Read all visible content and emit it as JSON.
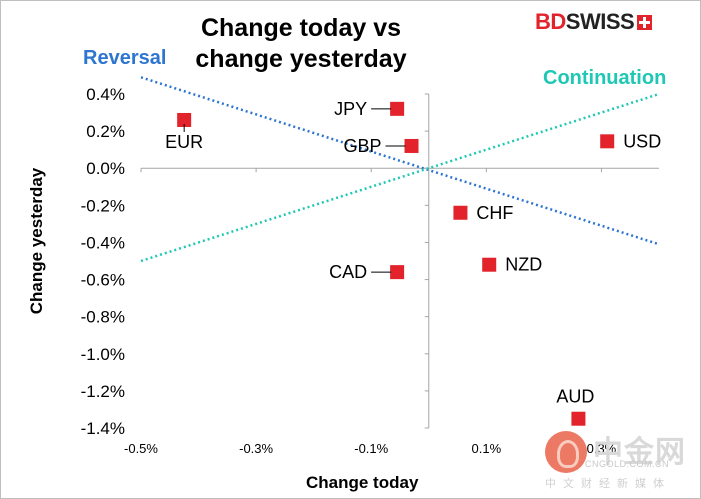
{
  "logo": {
    "prefix": "BD",
    "suffix": "SWISS"
  },
  "watermark": {
    "cn": "中金网",
    "url": "CNGOLD.COM.CN",
    "sub": "中文财经新媒体"
  },
  "chart_data": {
    "type": "scatter",
    "title": "Change today vs change yesterday",
    "title_line1": "Change today vs",
    "title_line2": "change yesterday",
    "xlabel": "Change today",
    "ylabel": "Change yesterday",
    "xlim": [
      -0.5,
      0.4
    ],
    "ylim": [
      -1.4,
      0.4
    ],
    "x_ticks": [
      -0.5,
      -0.3,
      -0.1,
      0.1,
      0.3
    ],
    "x_tick_labels": [
      "-0.5%",
      "-0.3%",
      "-0.1%",
      "0.1%",
      "0.3%"
    ],
    "y_ticks": [
      0.4,
      0.2,
      0.0,
      -0.2,
      -0.4,
      -0.6,
      -0.8,
      -1.0,
      -1.2,
      -1.4
    ],
    "y_tick_labels": [
      "0.4%",
      "0.2%",
      "0.0%",
      "-0.2%",
      "-0.4%",
      "-0.6%",
      "-0.8%",
      "-1.0%",
      "-1.2%",
      "-1.4%"
    ],
    "points": [
      {
        "label": "EUR",
        "x": -0.425,
        "y": 0.26,
        "color": "#e3232b",
        "label_pos": "below"
      },
      {
        "label": "JPY",
        "x": -0.055,
        "y": 0.32,
        "color": "#e3232b",
        "label_pos": "left"
      },
      {
        "label": "GBP",
        "x": -0.03,
        "y": 0.12,
        "color": "#e3232b",
        "label_pos": "left"
      },
      {
        "label": "USD",
        "x": 0.31,
        "y": 0.145,
        "color": "#e3232b",
        "label_pos": "right"
      },
      {
        "label": "CHF",
        "x": 0.055,
        "y": -0.24,
        "color": "#e3232b",
        "label_pos": "right"
      },
      {
        "label": "NZD",
        "x": 0.105,
        "y": -0.52,
        "color": "#e3232b",
        "label_pos": "right"
      },
      {
        "label": "CAD",
        "x": -0.055,
        "y": -0.56,
        "color": "#e3232b",
        "label_pos": "left"
      },
      {
        "label": "AUD",
        "x": 0.26,
        "y": -1.35,
        "color": "#e3232b",
        "label_pos": "above"
      }
    ],
    "reference_lines": [
      {
        "name": "Reversal",
        "from": [
          -0.5,
          0.49
        ],
        "to": [
          0.4,
          -0.41
        ],
        "color": "#2e75d1"
      },
      {
        "name": "Continuation",
        "from": [
          -0.5,
          -0.5
        ],
        "to": [
          0.4,
          0.4
        ],
        "color": "#1ec8b4"
      }
    ]
  }
}
